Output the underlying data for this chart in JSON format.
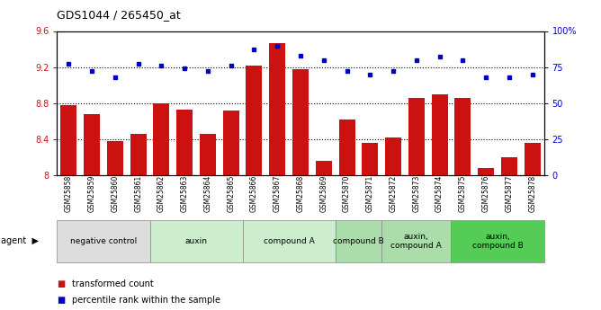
{
  "title": "GDS1044 / 265450_at",
  "samples": [
    "GSM25858",
    "GSM25859",
    "GSM25860",
    "GSM25861",
    "GSM25862",
    "GSM25863",
    "GSM25864",
    "GSM25865",
    "GSM25866",
    "GSM25867",
    "GSM25868",
    "GSM25869",
    "GSM25870",
    "GSM25871",
    "GSM25872",
    "GSM25873",
    "GSM25874",
    "GSM25875",
    "GSM25876",
    "GSM25877",
    "GSM25878"
  ],
  "bar_values": [
    8.78,
    8.68,
    8.38,
    8.46,
    8.8,
    8.73,
    8.46,
    8.72,
    9.22,
    9.47,
    9.18,
    8.16,
    8.62,
    8.36,
    8.42,
    8.86,
    8.9,
    8.86,
    8.08,
    8.2,
    8.36
  ],
  "dot_values": [
    77,
    72,
    68,
    77,
    76,
    74,
    72,
    76,
    87,
    90,
    83,
    80,
    72,
    70,
    72,
    80,
    82,
    80,
    68,
    68,
    70
  ],
  "bar_color": "#CC1111",
  "dot_color": "#0000CC",
  "ylim_left": [
    8.0,
    9.6
  ],
  "ylim_right": [
    0,
    100
  ],
  "yticks_left": [
    8.0,
    8.4,
    8.8,
    9.2,
    9.6
  ],
  "ytick_labels_left": [
    "8",
    "8.4",
    "8.8",
    "9.2",
    "9.6"
  ],
  "yticks_right": [
    0,
    25,
    50,
    75,
    100
  ],
  "ytick_labels_right": [
    "0",
    "25",
    "50",
    "75",
    "100%"
  ],
  "grid_values": [
    8.4,
    8.8,
    9.2
  ],
  "groups": [
    {
      "label": "negative control",
      "start": 0,
      "end": 4,
      "color": "#DDDDDD"
    },
    {
      "label": "auxin",
      "start": 4,
      "end": 8,
      "color": "#CCEECC"
    },
    {
      "label": "compound A",
      "start": 8,
      "end": 12,
      "color": "#CCEECC"
    },
    {
      "label": "compound B",
      "start": 12,
      "end": 14,
      "color": "#AADDAA"
    },
    {
      "label": "auxin,\ncompound A",
      "start": 14,
      "end": 17,
      "color": "#AADDAA"
    },
    {
      "label": "auxin,\ncompound B",
      "start": 17,
      "end": 21,
      "color": "#55CC55"
    }
  ],
  "legend_bar": "transformed count",
  "legend_dot": "percentile rank within the sample"
}
